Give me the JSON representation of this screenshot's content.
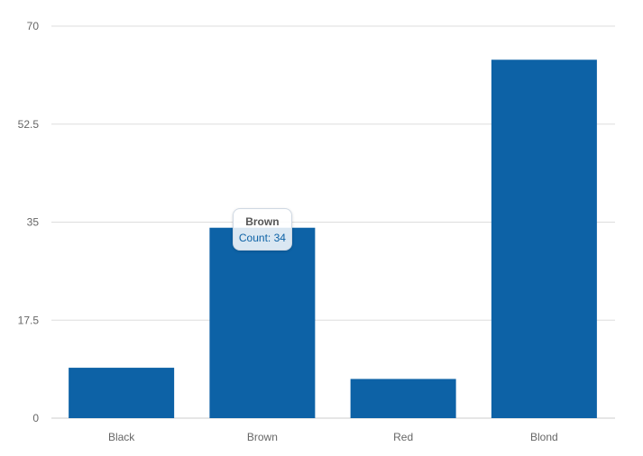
{
  "chart_data": {
    "type": "bar",
    "categories": [
      "Black",
      "Brown",
      "Red",
      "Blond"
    ],
    "values": [
      9,
      34,
      7,
      64
    ],
    "ylim": [
      0,
      70
    ],
    "yticks": [
      0,
      17.5,
      35,
      52.5,
      70
    ],
    "yticks_labels": [
      "0",
      "17.5",
      "35",
      "52.5",
      "70"
    ],
    "grid": true,
    "bar_color": "#0d62a6",
    "tooltip": {
      "title": "Brown",
      "label": "Count: 34"
    }
  }
}
